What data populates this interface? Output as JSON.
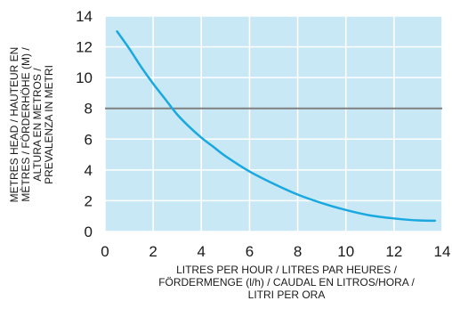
{
  "chart_data": {
    "type": "line",
    "title": "",
    "xlabel": [
      "LITRES PER HOUR / LITRES PAR HEURES /",
      "FÖRDERMENGE (l/h) / CAUDAL EN LITROS/HORA /",
      "LITRI PER ORA"
    ],
    "ylabel": [
      "METRES HEAD / HAUTEUR EN",
      "MÈTRES / FÖRDERHÖHE (M) /",
      "ALTURA EN METROS /",
      "PREVALENZA IN METRI"
    ],
    "xlim": [
      0,
      14
    ],
    "ylim": [
      0,
      14
    ],
    "xticks": [
      0,
      2,
      4,
      6,
      8,
      10,
      12,
      14
    ],
    "yticks": [
      0,
      2,
      4,
      6,
      8,
      10,
      12,
      14
    ],
    "grid": true,
    "background_color": "#c8e8f6",
    "grid_color": "#ffffff",
    "series": [
      {
        "color": "#1aa8e0",
        "x": [
          0.5,
          1,
          1.5,
          2,
          2.5,
          3,
          3.5,
          4,
          4.5,
          5,
          6,
          7,
          8,
          9,
          10,
          11,
          12,
          13,
          13.7
        ],
        "y": [
          13.0,
          11.9,
          10.7,
          9.6,
          8.6,
          7.6,
          6.8,
          6.1,
          5.5,
          4.9,
          3.9,
          3.1,
          2.4,
          1.85,
          1.4,
          1.05,
          0.85,
          0.72,
          0.7
        ]
      }
    ],
    "reference_line": {
      "y": 8,
      "color": "#7f7f7f"
    }
  }
}
